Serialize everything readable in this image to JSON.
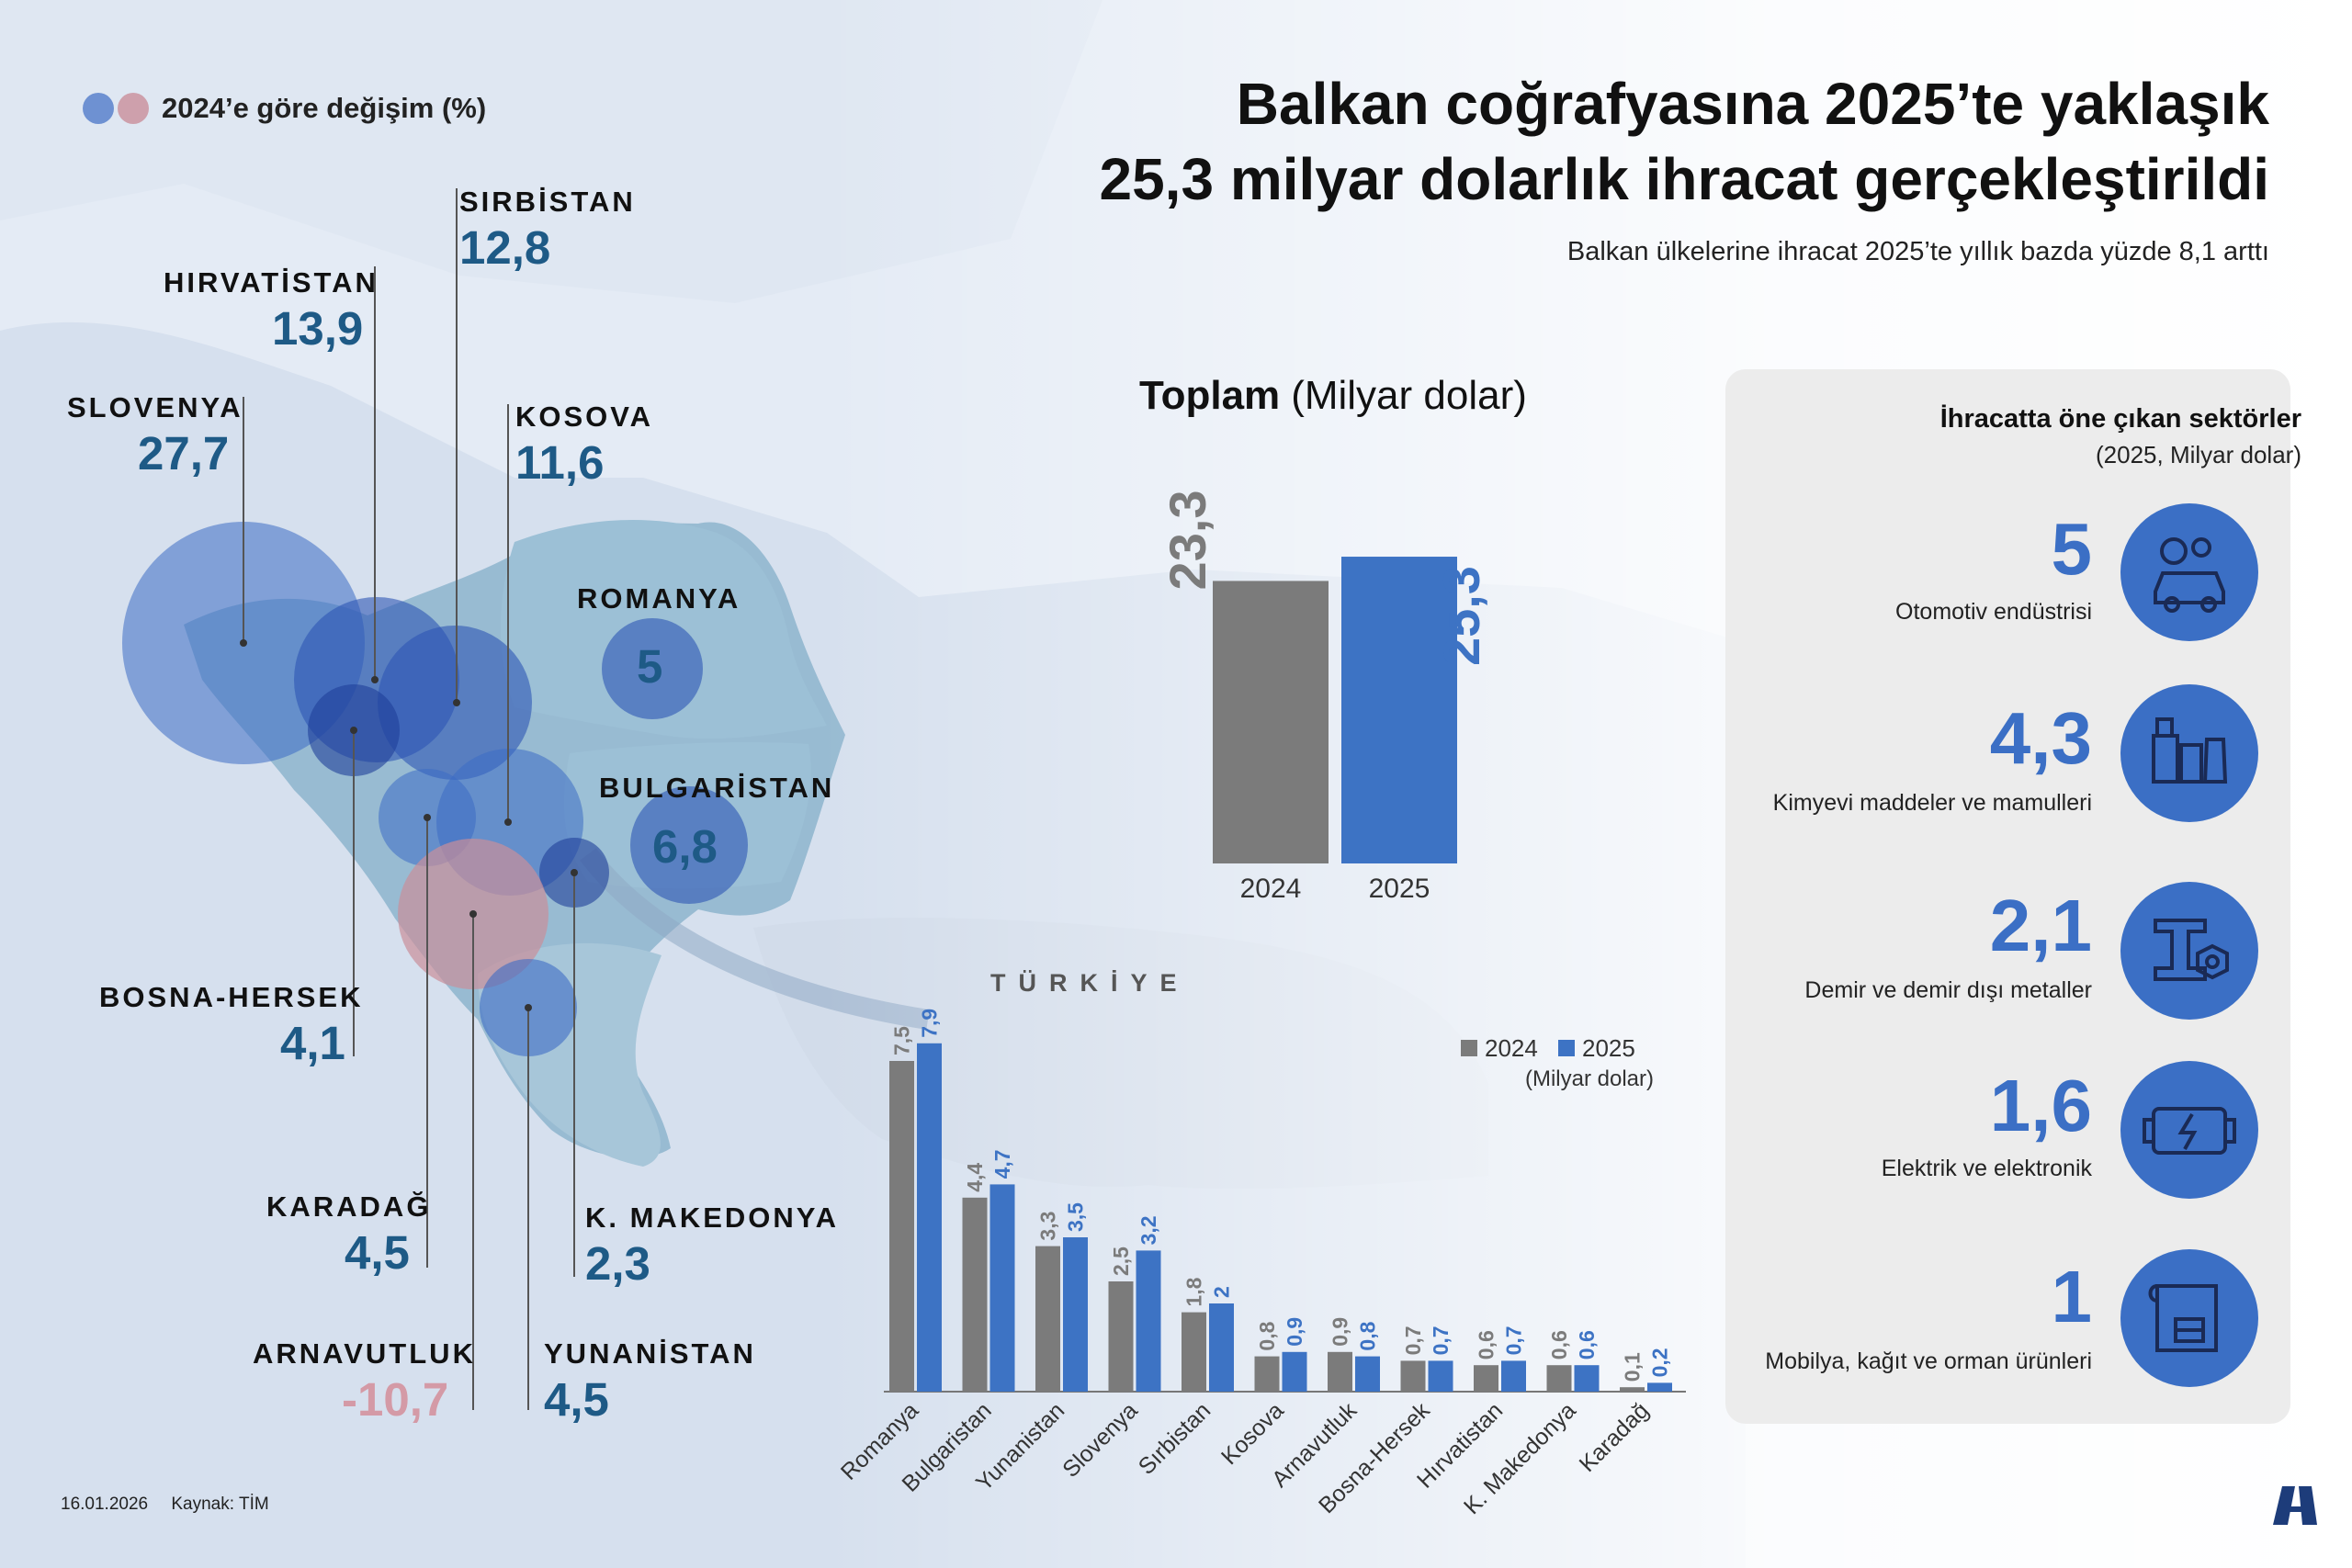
{
  "title_line1": "Balkan coğrafyasına 2025’te yaklaşık",
  "title_line2": "25,3 milyar dolarlık ihracat gerçekleştirildi",
  "subtitle": "Balkan ülkelerine ihracat 2025’te yıllık bazda yüzde 8,1 arttı",
  "legend_label": "2024’e göre değişim (%)",
  "colors": {
    "positive": "#3d6cc4",
    "negative": "#c98f9a",
    "bar2024": "#7b7b7b",
    "bar2025": "#3d73c4",
    "value_text": "#1e5a86",
    "negative_text": "#d49aa6"
  },
  "map": {
    "turkiye_label": "TÜRKİYE",
    "countries": [
      {
        "name": "SLOVENYA",
        "value": "27,7",
        "negative": false
      },
      {
        "name": "HIRVATİSTAN",
        "value": "13,9",
        "negative": false
      },
      {
        "name": "SIRBİSTAN",
        "value": "12,8",
        "negative": false
      },
      {
        "name": "KOSOVA",
        "value": "11,6",
        "negative": false
      },
      {
        "name": "ROMANYA",
        "value": "5",
        "negative": false
      },
      {
        "name": "BULGARİSTAN",
        "value": "6,8",
        "negative": false
      },
      {
        "name": "BOSNA-HERSEK",
        "value": "4,1",
        "negative": false
      },
      {
        "name": "KARADAĞ",
        "value": "4,5",
        "negative": false
      },
      {
        "name": "K. MAKEDONYA",
        "value": "2,3",
        "negative": false
      },
      {
        "name": "ARNAVUTLUK",
        "value": "-10,7",
        "negative": true
      },
      {
        "name": "YUNANİSTAN",
        "value": "4,5",
        "negative": false
      }
    ]
  },
  "total": {
    "title_bold": "Toplam",
    "title_rest": "(Milyar dolar)",
    "values": [
      {
        "year": "2024",
        "value": 23.3,
        "label": "23,3"
      },
      {
        "year": "2025",
        "value": 25.3,
        "label": "25,3"
      }
    ]
  },
  "chart_data": {
    "type": "bar",
    "categories": [
      "Romanya",
      "Bulgaristan",
      "Yunanistan",
      "Slovenya",
      "Sırbistan",
      "Kosova",
      "Arnavutluk",
      "Bosna-Hersek",
      "Hırvatistan",
      "K. Makedonya",
      "Karadağ"
    ],
    "series": [
      {
        "name": "2024",
        "values": [
          7.5,
          4.4,
          3.3,
          2.5,
          1.8,
          0.8,
          0.9,
          0.7,
          0.6,
          0.6,
          0.1
        ],
        "labels": [
          "7,5",
          "4,4",
          "3,3",
          "2,5",
          "1,8",
          "0,8",
          "0,9",
          "0,7",
          "0,6",
          "0,6",
          "0,1"
        ]
      },
      {
        "name": "2025",
        "values": [
          7.9,
          4.7,
          3.5,
          3.2,
          2.0,
          0.9,
          0.8,
          0.7,
          0.7,
          0.6,
          0.2
        ],
        "labels": [
          "7,9",
          "4,7",
          "3,5",
          "3,2",
          "2",
          "0,9",
          "0,8",
          "0,7",
          "0,7",
          "0,6",
          "0,2"
        ]
      }
    ],
    "unit_label": "(Milyar dolar)",
    "legend_position": "top-right"
  },
  "sectors": {
    "title": "İhracatta öne çıkan sektörler",
    "subtitle": "(2025, Milyar dolar)",
    "items": [
      {
        "value": "5",
        "name": "Otomotiv endüstrisi",
        "icon": "car-gear-icon"
      },
      {
        "value": "4,3",
        "name": "Kimyevi maddeler ve mamulleri",
        "icon": "chemicals-icon"
      },
      {
        "value": "2,1",
        "name": "Demir ve demir dışı metaller",
        "icon": "metal-nut-icon"
      },
      {
        "value": "1,6",
        "name": "Elektrik ve elektronik",
        "icon": "electric-motor-icon"
      },
      {
        "value": "1",
        "name": "Mobilya, kağıt ve orman ürünleri",
        "icon": "furniture-paper-icon"
      }
    ]
  },
  "footer": {
    "date": "16.01.2026",
    "source": "Kaynak: TİM"
  }
}
